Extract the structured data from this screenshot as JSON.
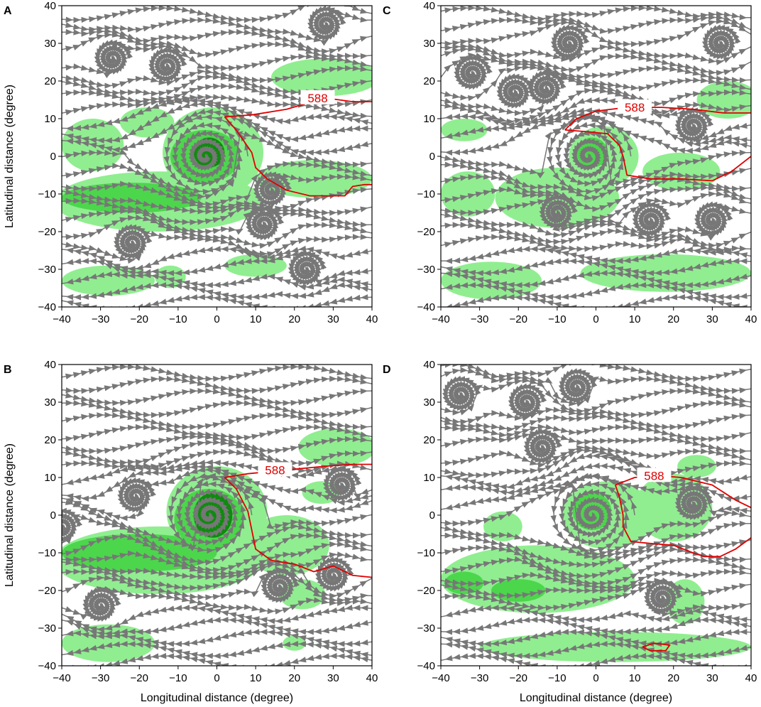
{
  "figure": {
    "shared_xlabel": "Longitudinal distance (degree)",
    "shared_ylabel": "Latitudinal distance (degree)"
  },
  "colors": {
    "streamline": "#777777",
    "contour": "#e00000",
    "light_green": "#90ee90",
    "medium_green": "#4cd64c",
    "dark_green": "#108a10"
  },
  "chart_data": [
    {
      "type": "streamline",
      "panel_label": "A",
      "xlabel": "",
      "ylabel": "Latitudinal distance (degree)",
      "xlim": [
        -40,
        40
      ],
      "ylim": [
        -40,
        40
      ],
      "xticks": [
        -40,
        -30,
        -20,
        -10,
        0,
        10,
        20,
        30,
        40
      ],
      "yticks": [
        -40,
        -30,
        -20,
        -10,
        0,
        10,
        20,
        30,
        40
      ],
      "contour_label": "588",
      "contour_588": [
        [
          [
            2,
            10.5
          ],
          [
            9,
            11
          ],
          [
            18,
            12.5
          ],
          [
            28,
            15.5
          ],
          [
            35,
            14.5
          ],
          [
            40,
            14.5
          ]
        ],
        [
          [
            2,
            10.5
          ],
          [
            5,
            7
          ],
          [
            9,
            1
          ],
          [
            10,
            -3
          ],
          [
            13,
            -6
          ],
          [
            18,
            -9
          ],
          [
            24,
            -10.5
          ],
          [
            30,
            -10.5
          ],
          [
            33,
            -10.5
          ],
          [
            35,
            -8
          ],
          [
            38,
            -7.5
          ],
          [
            40,
            -7.5
          ]
        ]
      ],
      "contour_label_at": [
        26,
        15.5
      ],
      "vortices": [
        [
          -3,
          0,
          "strong"
        ],
        [
          12,
          -18,
          "weak"
        ],
        [
          14,
          -9,
          "weak"
        ],
        [
          -13,
          24,
          "weak"
        ],
        [
          -27,
          26,
          "weak"
        ],
        [
          23,
          -30,
          "weak"
        ],
        [
          28,
          35,
          "weak"
        ],
        [
          -22,
          -23,
          "weak"
        ]
      ],
      "shading": [
        {
          "level": "light",
          "cx": -15,
          "cy": -12,
          "rx": 27,
          "ry": 8
        },
        {
          "level": "light",
          "cx": -32,
          "cy": 3,
          "rx": 8,
          "ry": 7
        },
        {
          "level": "light",
          "cx": -18,
          "cy": 9,
          "rx": 7,
          "ry": 4
        },
        {
          "level": "light",
          "cx": -1,
          "cy": 1,
          "rx": 13,
          "ry": 12
        },
        {
          "level": "light",
          "cx": 28,
          "cy": 21,
          "rx": 14,
          "ry": 5
        },
        {
          "level": "light",
          "cx": 25,
          "cy": -6,
          "rx": 15,
          "ry": 5
        },
        {
          "level": "light",
          "cx": -28,
          "cy": -33,
          "rx": 12,
          "ry": 4
        },
        {
          "level": "light",
          "cx": 10,
          "cy": -29,
          "rx": 8,
          "ry": 3
        },
        {
          "level": "light",
          "cx": -12,
          "cy": -32,
          "rx": 4,
          "ry": 3
        },
        {
          "level": "medium",
          "cx": -22,
          "cy": -11,
          "rx": 18,
          "ry": 4
        },
        {
          "level": "medium",
          "cx": -3,
          "cy": 0,
          "rx": 9,
          "ry": 7
        },
        {
          "level": "dark",
          "cx": -2,
          "cy": 1,
          "rx": 4,
          "ry": 4
        }
      ]
    },
    {
      "type": "streamline",
      "panel_label": "B",
      "xlabel": "Longitudinal distance (degree)",
      "ylabel": "Latitudinal distance (degree)",
      "xlim": [
        -40,
        40
      ],
      "ylim": [
        -40,
        40
      ],
      "xticks": [
        -40,
        -30,
        -20,
        -10,
        0,
        10,
        20,
        30,
        40
      ],
      "yticks": [
        -40,
        -30,
        -20,
        -10,
        0,
        10,
        20,
        30,
        40
      ],
      "contour_label": "588",
      "contour_588": [
        [
          [
            2,
            10
          ],
          [
            8,
            11
          ],
          [
            18,
            12
          ],
          [
            28,
            13
          ],
          [
            35,
            13.5
          ],
          [
            40,
            13.5
          ]
        ],
        [
          [
            2,
            10
          ],
          [
            5,
            7
          ],
          [
            8,
            1
          ],
          [
            9,
            -4
          ],
          [
            10,
            -9
          ],
          [
            14,
            -12
          ],
          [
            20,
            -13
          ],
          [
            25,
            -15
          ],
          [
            30,
            -13.5
          ],
          [
            35,
            -16
          ],
          [
            40,
            -16.5
          ]
        ]
      ],
      "contour_label_at": [
        15,
        12
      ],
      "vortices": [
        [
          -2,
          0,
          "strong"
        ],
        [
          -21,
          5,
          "weak"
        ],
        [
          -30,
          -24,
          "weak"
        ],
        [
          16,
          -19,
          "weak"
        ],
        [
          30,
          -16,
          "weak"
        ],
        [
          32,
          8,
          "weak"
        ],
        [
          -40,
          -3,
          "weak"
        ]
      ],
      "shading": [
        {
          "level": "light",
          "cx": -15,
          "cy": -12,
          "rx": 27,
          "ry": 9
        },
        {
          "level": "light",
          "cx": 0,
          "cy": 1,
          "rx": 13,
          "ry": 12
        },
        {
          "level": "light",
          "cx": 18,
          "cy": -8,
          "rx": 11,
          "ry": 8
        },
        {
          "level": "light",
          "cx": 31,
          "cy": 18,
          "rx": 10,
          "ry": 5
        },
        {
          "level": "light",
          "cx": 27,
          "cy": 6,
          "rx": 5,
          "ry": 3
        },
        {
          "level": "light",
          "cx": 22,
          "cy": -21,
          "rx": 6,
          "ry": 4
        },
        {
          "level": "light",
          "cx": -28,
          "cy": -34,
          "rx": 12,
          "ry": 5
        },
        {
          "level": "light",
          "cx": 20,
          "cy": -34,
          "rx": 3,
          "ry": 2
        },
        {
          "level": "medium",
          "cx": -20,
          "cy": -10,
          "rx": 20,
          "ry": 5
        },
        {
          "level": "medium",
          "cx": -2,
          "cy": -1,
          "rx": 9,
          "ry": 8
        },
        {
          "level": "dark",
          "cx": -1,
          "cy": 0,
          "rx": 5,
          "ry": 6
        }
      ]
    },
    {
      "type": "streamline",
      "panel_label": "C",
      "xlabel": "",
      "ylabel": "",
      "xlim": [
        -40,
        40
      ],
      "ylim": [
        -40,
        40
      ],
      "xticks": [
        -40,
        -30,
        -20,
        -10,
        0,
        10,
        20,
        30,
        40
      ],
      "yticks": [
        -40,
        -30,
        -20,
        -10,
        0,
        10,
        20,
        30,
        40
      ],
      "contour_label": "588",
      "contour_588": [
        [
          [
            -8,
            7
          ],
          [
            -5,
            10
          ],
          [
            0,
            12
          ],
          [
            8,
            13
          ],
          [
            17,
            13
          ],
          [
            25,
            12.5
          ],
          [
            33,
            11.5
          ],
          [
            40,
            11.5
          ]
        ],
        [
          [
            -8,
            7
          ],
          [
            -2,
            6.5
          ],
          [
            3,
            6
          ],
          [
            6,
            3
          ],
          [
            7,
            0
          ],
          [
            8,
            -5
          ],
          [
            14,
            -6
          ],
          [
            22,
            -6
          ],
          [
            30,
            -6.5
          ],
          [
            35,
            -4
          ],
          [
            40,
            0
          ]
        ]
      ],
      "contour_label_at": [
        10,
        13
      ],
      "vortices": [
        [
          -2,
          0,
          "strong"
        ],
        [
          -13,
          18,
          "weak"
        ],
        [
          -21,
          17,
          "weak"
        ],
        [
          -32,
          22,
          "weak"
        ],
        [
          -7,
          30,
          "weak"
        ],
        [
          25,
          8,
          "weak"
        ],
        [
          32,
          30,
          "weak"
        ],
        [
          30,
          -17,
          "weak"
        ],
        [
          14,
          -17,
          "weak"
        ],
        [
          -10,
          -15,
          "weak"
        ]
      ],
      "shading": [
        {
          "level": "light",
          "cx": -10,
          "cy": -11,
          "rx": 16,
          "ry": 8
        },
        {
          "level": "light",
          "cx": 2,
          "cy": 0,
          "rx": 9,
          "ry": 8
        },
        {
          "level": "light",
          "cx": 22,
          "cy": -4,
          "rx": 10,
          "ry": 5
        },
        {
          "level": "light",
          "cx": 34,
          "cy": 15,
          "rx": 8,
          "ry": 5
        },
        {
          "level": "light",
          "cx": 18,
          "cy": -31,
          "rx": 22,
          "ry": 5
        },
        {
          "level": "light",
          "cx": -27,
          "cy": -33,
          "rx": 13,
          "ry": 5
        },
        {
          "level": "light",
          "cx": -34,
          "cy": 7,
          "rx": 6,
          "ry": 3
        },
        {
          "level": "light",
          "cx": -33,
          "cy": -10,
          "rx": 7,
          "ry": 6
        },
        {
          "level": "medium",
          "cx": -1,
          "cy": 1,
          "rx": 4,
          "ry": 4
        }
      ]
    },
    {
      "type": "streamline",
      "panel_label": "D",
      "xlabel": "Longitudinal distance (degree)",
      "ylabel": "",
      "xlim": [
        -40,
        40
      ],
      "ylim": [
        -40,
        40
      ],
      "xticks": [
        -40,
        -30,
        -20,
        -10,
        0,
        10,
        20,
        30,
        40
      ],
      "yticks": [
        -40,
        -30,
        -20,
        -10,
        0,
        10,
        20,
        30,
        40
      ],
      "contour_label": "588",
      "contour_588": [
        [
          [
            5,
            8
          ],
          [
            10,
            10
          ],
          [
            16,
            10.5
          ],
          [
            22,
            10
          ],
          [
            30,
            8
          ],
          [
            36,
            4
          ],
          [
            40,
            2
          ]
        ],
        [
          [
            5,
            8
          ],
          [
            6,
            5
          ],
          [
            7,
            0
          ],
          [
            7,
            -3
          ],
          [
            9,
            -7
          ],
          [
            14,
            -7.5
          ],
          [
            20,
            -8
          ],
          [
            25,
            -10
          ],
          [
            28,
            -11
          ],
          [
            32,
            -11
          ],
          [
            36,
            -9
          ],
          [
            40,
            -6
          ]
        ],
        [
          [
            12,
            -35
          ],
          [
            15,
            -34
          ],
          [
            19,
            -34.5
          ],
          [
            18,
            -36
          ],
          [
            14,
            -36
          ],
          [
            12,
            -35
          ]
        ]
      ],
      "contour_label_at": [
        15,
        10.5
      ],
      "vortices": [
        [
          -1,
          0,
          "strong"
        ],
        [
          25,
          3,
          "weak"
        ],
        [
          -35,
          32,
          "weak"
        ],
        [
          -18,
          30,
          "weak"
        ],
        [
          -14,
          18,
          "weak"
        ],
        [
          17,
          -22,
          "weak"
        ],
        [
          -5,
          34,
          "weak"
        ]
      ],
      "shading": [
        {
          "level": "light",
          "cx": -15,
          "cy": -17,
          "rx": 25,
          "ry": 9
        },
        {
          "level": "light",
          "cx": 3,
          "cy": 0,
          "rx": 12,
          "ry": 9
        },
        {
          "level": "light",
          "cx": 20,
          "cy": 2,
          "rx": 10,
          "ry": 9
        },
        {
          "level": "light",
          "cx": -24,
          "cy": -3,
          "rx": 5,
          "ry": 4
        },
        {
          "level": "light",
          "cx": 5,
          "cy": -35,
          "rx": 35,
          "ry": 4
        },
        {
          "level": "light",
          "cx": 26,
          "cy": 13,
          "rx": 5,
          "ry": 3
        },
        {
          "level": "light",
          "cx": 23,
          "cy": -23,
          "rx": 5,
          "ry": 6
        },
        {
          "level": "medium",
          "cx": -1,
          "cy": 1,
          "rx": 5,
          "ry": 5
        },
        {
          "level": "medium",
          "cx": -34,
          "cy": -18,
          "rx": 5,
          "ry": 3
        },
        {
          "level": "medium",
          "cx": -20,
          "cy": -20,
          "rx": 7,
          "ry": 3
        }
      ]
    }
  ]
}
